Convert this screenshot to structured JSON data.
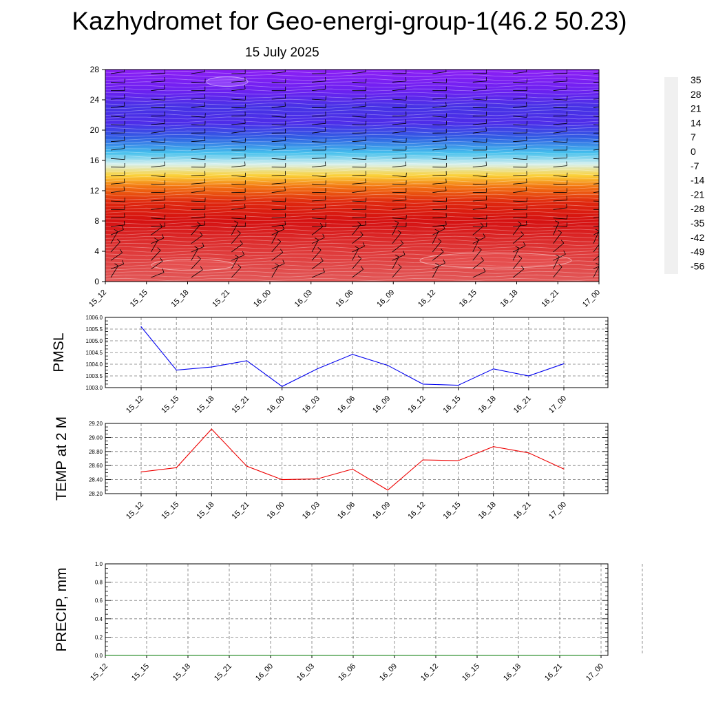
{
  "title": "Kazhydromet for Geo-energi-group-1(46.2 50.23)",
  "subtitle": "15 July 2025",
  "chart_data": [
    {
      "type": "heatmap",
      "description_of_quantity": "filled temperature contours with wind barbs",
      "x_categories": [
        "15_12",
        "15_15",
        "15_18",
        "15_21",
        "16_00",
        "16_03",
        "16_06",
        "16_09",
        "16_12",
        "16_15",
        "16_18",
        "16_21",
        "17_00"
      ],
      "yticks": [
        0,
        4,
        8,
        12,
        16,
        20,
        24,
        28
      ],
      "ylim": [
        0,
        28
      ],
      "colorbar": {
        "labels": [
          "35",
          "28",
          "21",
          "14",
          "7",
          "0",
          "-7",
          "-14",
          "-21",
          "-28",
          "-35",
          "-42",
          "-49",
          "-56"
        ],
        "colors": [
          "#f0f0f0",
          "#dc1414",
          "#d21010",
          "#e02a0e",
          "#ef5d0e",
          "#f68d16",
          "#fbc229",
          "#fbe94e",
          "#ddf2ee",
          "#5bd6ef",
          "#25a3ea",
          "#2d68e4",
          "#3b3ce0",
          "#5a22ee",
          "#8c1ff5"
        ],
        "range": [
          -63,
          38
        ]
      },
      "profile": [
        {
          "y": 0,
          "t": 33
        },
        {
          "y": 4,
          "t": 32
        },
        {
          "y": 8,
          "t": 26
        },
        {
          "y": 10.5,
          "t": 17
        },
        {
          "y": 12.5,
          "t": 6
        },
        {
          "y": 14,
          "t": -8
        },
        {
          "y": 15.5,
          "t": -20
        },
        {
          "y": 17,
          "t": -30
        },
        {
          "y": 19,
          "t": -43
        },
        {
          "y": 21,
          "t": -53
        },
        {
          "y": 23,
          "t": -51
        },
        {
          "y": 25,
          "t": -58
        },
        {
          "y": 28,
          "t": -63
        }
      ]
    },
    {
      "type": "line",
      "ylabel": "PMSL",
      "x": [
        "15_12",
        "15_15",
        "15_18",
        "15_21",
        "16_00",
        "16_03",
        "16_06",
        "16_09",
        "16_12",
        "16_15",
        "16_18",
        "16_21",
        "17_00"
      ],
      "values": [
        1005.6,
        1003.75,
        1003.88,
        1004.15,
        1003.05,
        1003.8,
        1004.42,
        1003.95,
        1003.15,
        1003.1,
        1003.8,
        1003.5,
        1004.02
      ],
      "ylim": [
        1003.0,
        1006.0
      ],
      "yticks": [
        "1003.0",
        "1003.5",
        "1004.0",
        "1004.5",
        "1005.0",
        "1005.5",
        "1006.0"
      ],
      "color": "#0000ee"
    },
    {
      "type": "line",
      "ylabel": "TEMP at 2 M",
      "x": [
        "15_12",
        "15_15",
        "15_18",
        "15_21",
        "16_00",
        "16_03",
        "16_06",
        "16_09",
        "16_12",
        "16_15",
        "16_18",
        "16_21",
        "17_00"
      ],
      "values": [
        28.51,
        28.57,
        29.12,
        28.59,
        28.4,
        28.41,
        28.55,
        28.25,
        28.68,
        28.67,
        28.87,
        28.78,
        28.55
      ],
      "ylim": [
        28.2,
        29.2
      ],
      "yticks": [
        "28.20",
        "28.40",
        "28.60",
        "28.80",
        "29.00",
        "29.20"
      ],
      "color": "#ee0000"
    },
    {
      "type": "line",
      "ylabel": "PRECIP, mm",
      "x": [
        "15_12",
        "15_15",
        "15_18",
        "15_21",
        "16_00",
        "16_03",
        "16_06",
        "16_09",
        "16_12",
        "16_15",
        "16_18",
        "16_21",
        "17_00"
      ],
      "values": [
        0,
        0,
        0,
        0,
        0,
        0,
        0,
        0,
        0,
        0,
        0,
        0,
        0
      ],
      "ylim": [
        0,
        1.0
      ],
      "yticks": [
        "0.0",
        "0.2",
        "0.4",
        "0.6",
        "0.8",
        "1.0"
      ],
      "color": "#007700"
    }
  ]
}
